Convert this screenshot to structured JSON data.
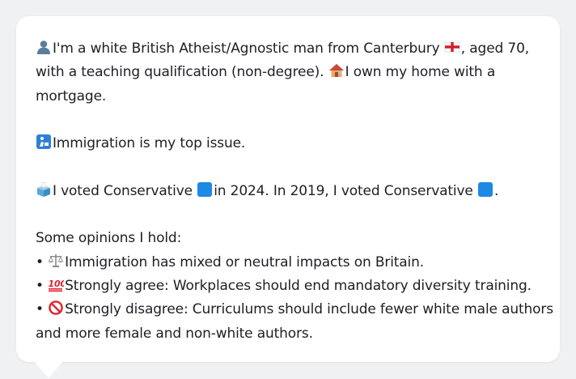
{
  "profile": {
    "identity_pre": "I'm a white British Atheist/Agnostic man from Canterbury",
    "identity_post": ", aged 70,",
    "education_pre": "with a teaching qualification (non-degree).",
    "home_text": "I own my home with a",
    "home_cont": "mortgage.",
    "top_issue": "Immigration is my top issue.",
    "vote_2024_pre": "I voted Conservative",
    "vote_2024_post": "in 2024. In 2019, I voted Conservative",
    "vote_2019_post": ".",
    "opinions_heading": "Some opinions I hold:",
    "opinions": [
      {
        "bullet": "•",
        "text": "Immigration has mixed or neutral impacts on Britain."
      },
      {
        "bullet": "•",
        "text": "Strongly agree: Workplaces should end mandatory diversity training."
      },
      {
        "bullet": "•",
        "text": "Strongly disagree: Curriculums should include fewer white male authors"
      }
    ],
    "opinion_3_cont": "and more female and non-white authors."
  },
  "icons": {
    "person": "bust-in-silhouette-icon",
    "flag": "england-flag-icon",
    "home": "house-icon",
    "issue": "passport-control-icon",
    "ballot": "ballot-box-icon",
    "party": "blue-square-icon",
    "balance": "balance-scale-icon",
    "hundred": "hundred-points-icon",
    "prohibited": "prohibited-icon"
  },
  "colors": {
    "background": "#f0f1f2",
    "bubble": "#ffffff",
    "text": "#1d1f24",
    "conservative_blue": "#1e88e5"
  }
}
